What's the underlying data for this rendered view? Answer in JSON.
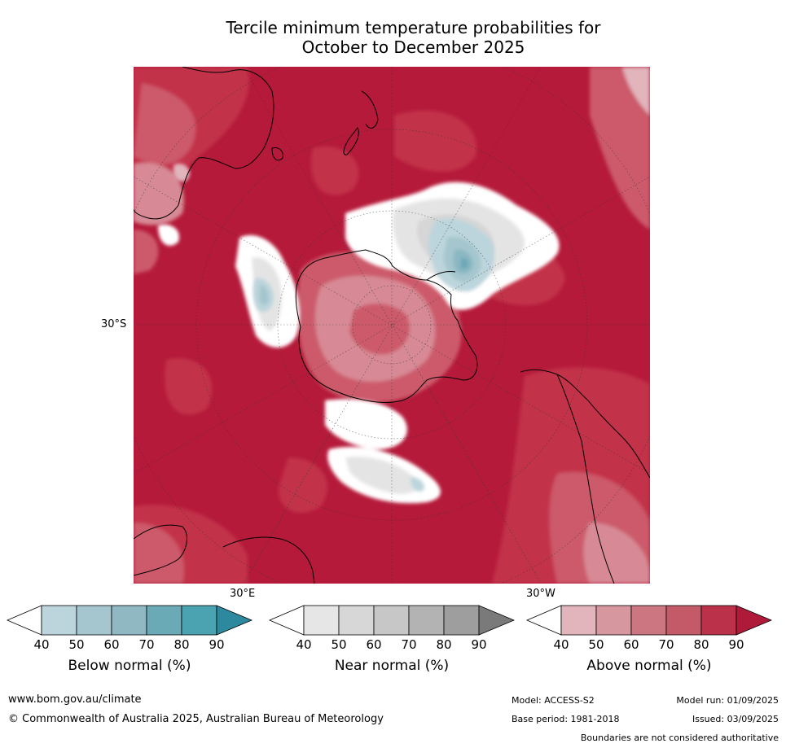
{
  "title": {
    "line1": "Tercile minimum temperature probabilities for",
    "line2": "October to December 2025"
  },
  "map": {
    "lat_label": "30°S",
    "lon_label_east": "30°E",
    "lon_label_west": "30°W",
    "colors": {
      "ocean_deep": "#b51a3a",
      "above_80": "#c23048",
      "above_70": "#cc5a6b",
      "above_60": "#d78a95",
      "above_50": "#e2b4bb",
      "near_white": "#ffffff",
      "near_50": "#e4e4e4",
      "near_60": "#d6d6d6",
      "below_50": "#bcd5dc",
      "below_60": "#a5c6ce",
      "below_70": "#8ab7c2",
      "below_80": "#6aa9b6"
    }
  },
  "legends": [
    {
      "label": "Below normal (%)",
      "ticks": [
        "40",
        "50",
        "60",
        "70",
        "80",
        "90"
      ],
      "colors": [
        "#ffffff",
        "#bcd5dc",
        "#a5c6ce",
        "#8fb8c3",
        "#6aa9b6",
        "#4ba2b0",
        "#2d8a9e"
      ]
    },
    {
      "label": "Near normal (%)",
      "ticks": [
        "40",
        "50",
        "60",
        "70",
        "80",
        "90"
      ],
      "colors": [
        "#ffffff",
        "#e6e6e6",
        "#d7d7d7",
        "#c7c7c7",
        "#b3b3b3",
        "#9e9e9e",
        "#7a7a7a"
      ]
    },
    {
      "label": "Above normal (%)",
      "ticks": [
        "40",
        "50",
        "60",
        "70",
        "80",
        "90"
      ],
      "colors": [
        "#ffffff",
        "#e2b4bb",
        "#d7979f",
        "#cc7681",
        "#c45a68",
        "#bb3149",
        "#b01a3a"
      ]
    }
  ],
  "footer": {
    "website": "www.bom.gov.au/climate",
    "copyright": "© Commonwealth of Australia 2025, Australian Bureau of Meteorology",
    "model": "Model: ACCESS-S2",
    "model_run": "Model run: 01/09/2025",
    "base_period": "Base period: 1981-2018",
    "issued": "Issued: 03/09/2025",
    "disclaimer": "Boundaries are not considered authoritative"
  }
}
